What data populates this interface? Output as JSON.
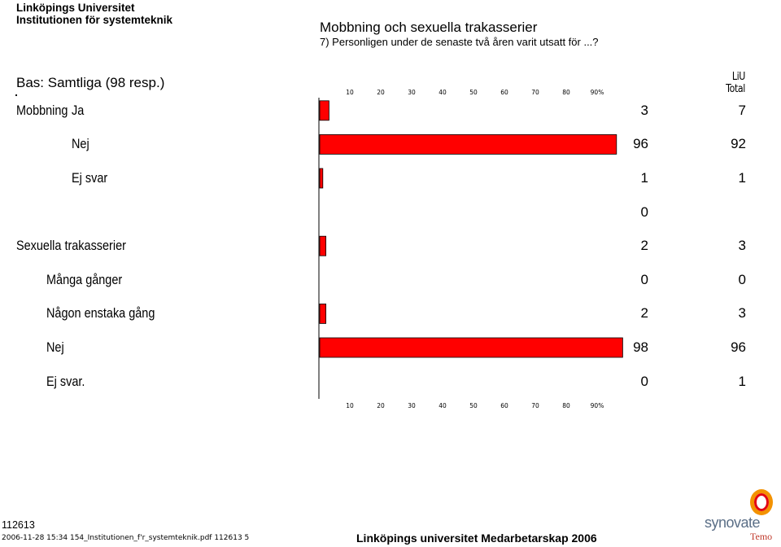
{
  "header": {
    "university": "Linköpings Universitet",
    "institution": "Institutionen för systemteknik",
    "title": "Mobbning och sexuella trakasserier",
    "question": "7) Personligen under de senaste två åren varit utsatt för ...?"
  },
  "base_label": "Bas: Samtliga (98 resp.)",
  "total_header": {
    "line1": "LiU",
    "line2": "Total"
  },
  "chart_data": {
    "type": "bar",
    "orientation": "horizontal",
    "x_ticks": [
      "10",
      "20",
      "30",
      "40",
      "50",
      "60",
      "70",
      "80",
      "90%"
    ],
    "xlim": [
      0,
      100
    ],
    "bar_color": "#ff0000",
    "rows": [
      {
        "group": "Mobbning",
        "label": "Ja",
        "value": 3,
        "total": "7"
      },
      {
        "group": "",
        "label": "Nej",
        "value": 96,
        "total": "92"
      },
      {
        "group": "",
        "label": "Ej svar",
        "value": 1,
        "total": "1"
      },
      {
        "group": "",
        "label": "",
        "value": 0,
        "total": "",
        "value_label": "0"
      },
      {
        "group": "Sexuella trakasserier",
        "label": "",
        "value": 2,
        "total": "3"
      },
      {
        "group": "",
        "label": "Många gånger",
        "value": 0,
        "total": "0"
      },
      {
        "group": "",
        "label": "Någon enstaka gång",
        "value": 2,
        "total": "3"
      },
      {
        "group": "",
        "label": "Nej",
        "value": 98,
        "total": "96"
      },
      {
        "group": "",
        "label": "Ej svar.",
        "value": 0,
        "total": "1"
      }
    ]
  },
  "footer": {
    "code": "112613",
    "meta": "2006-11-28 15:34 154_Institutionen_f'r_systemteknik.pdf 112613 5",
    "survey": "Linköpings universitet Medarbetarskap 2006",
    "logo": "synovate",
    "logo_sub": "Temo"
  }
}
